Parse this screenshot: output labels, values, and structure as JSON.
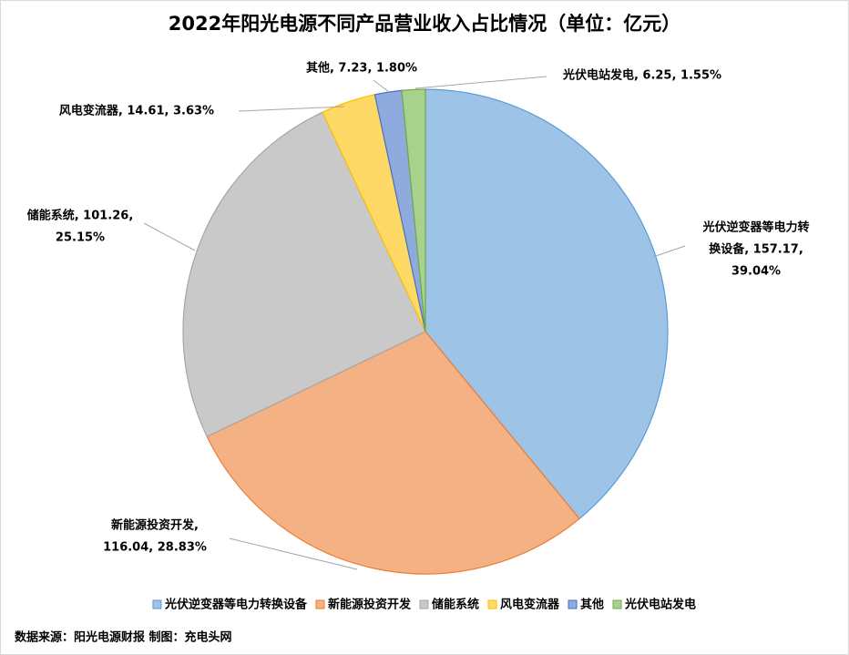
{
  "chart_data": {
    "type": "pie",
    "title": "2022年阳光电源不同产品营业收入占比情况（单位：亿元）",
    "categories": [
      "光伏逆变器等电力转换设备",
      "新能源投资开发",
      "储能系统",
      "风电变流器",
      "其他",
      "光伏电站发电"
    ],
    "values": [
      157.17,
      116.04,
      101.26,
      14.61,
      7.23,
      6.25
    ],
    "value_labels": [
      [
        "光伏逆变器等电力转",
        "换设备, 157.17,",
        "39.04%"
      ],
      [
        "新能源投资开发,",
        "116.04, 28.83%"
      ],
      [
        "储能系统, 101.26,",
        "25.15%"
      ],
      [
        "风电变流器, 14.61, 3.63%"
      ],
      [
        "其他, 7.23, 1.80%"
      ],
      [
        "光伏电站发电, 6.25, 1.55%"
      ]
    ],
    "colors": [
      "#9dc3e6",
      "#f4b183",
      "#c9c9c9",
      "#ffd966",
      "#8faadc",
      "#a9d18e"
    ],
    "edge_colors": [
      "#5b9bd5",
      "#ed7d31",
      "#a5a5a5",
      "#ffc000",
      "#4472c4",
      "#70ad47"
    ],
    "legend": "bottom",
    "source": "数据来源：阳光电源财报  制图：充电头网"
  }
}
